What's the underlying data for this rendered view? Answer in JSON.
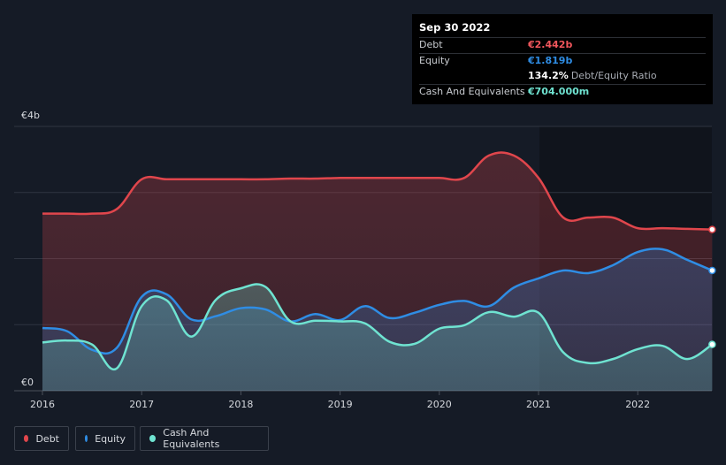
{
  "colors": {
    "debt": "#e0464c",
    "equity": "#2f8de4",
    "cash": "#6fe3d1",
    "background": "#151b26"
  },
  "tooltip": {
    "date": "Sep 30 2022",
    "rows": [
      {
        "label": "Debt",
        "value": "€2.442b",
        "color": "#f0565c"
      },
      {
        "label": "Equity",
        "value": "€1.819b",
        "color": "#2f8de4"
      },
      {
        "label": "",
        "value": "134.2%",
        "color": "#ffffff",
        "suffix": "Debt/Equity Ratio"
      },
      {
        "label": "Cash And Equivalents",
        "value": "€704.000m",
        "color": "#6fe3d1"
      }
    ]
  },
  "legend": [
    {
      "name": "Debt",
      "color": "#e0464c"
    },
    {
      "name": "Equity",
      "color": "#2f8de4"
    },
    {
      "name": "Cash And Equivalents",
      "color": "#6fe3d1"
    }
  ],
  "chart_data": {
    "type": "area",
    "title": "",
    "xlabel": "",
    "ylabel": "",
    "ylim": [
      0,
      4
    ],
    "xlim": [
      2015.75,
      2022.75
    ],
    "y_ticks": [
      {
        "value": 0,
        "label": "€0"
      },
      {
        "value": 4,
        "label": "€4b"
      }
    ],
    "x_ticks": [
      {
        "value": 2016,
        "label": "2016"
      },
      {
        "value": 2017,
        "label": "2017"
      },
      {
        "value": 2018,
        "label": "2018"
      },
      {
        "value": 2019,
        "label": "2019"
      },
      {
        "value": 2020,
        "label": "2020"
      },
      {
        "value": 2021,
        "label": "2021"
      },
      {
        "value": 2022,
        "label": "2022"
      }
    ],
    "grid": true,
    "legend_position": "bottom-left",
    "series": [
      {
        "name": "Debt",
        "x": [
          2016.0,
          2016.25,
          2016.5,
          2016.75,
          2017.0,
          2017.25,
          2017.5,
          2017.75,
          2018.0,
          2018.25,
          2018.5,
          2018.75,
          2019.0,
          2019.25,
          2019.5,
          2019.75,
          2020.0,
          2020.25,
          2020.5,
          2020.75,
          2021.0,
          2021.25,
          2021.5,
          2021.75,
          2022.0,
          2022.25,
          2022.5,
          2022.75
        ],
        "values": [
          2.68,
          2.68,
          2.68,
          2.75,
          3.2,
          3.2,
          3.2,
          3.2,
          3.2,
          3.2,
          3.21,
          3.21,
          3.22,
          3.22,
          3.22,
          3.22,
          3.22,
          3.22,
          3.56,
          3.56,
          3.22,
          2.62,
          2.62,
          2.62,
          2.46,
          2.46,
          2.45,
          2.44
        ]
      },
      {
        "name": "Equity",
        "x": [
          2016.0,
          2016.25,
          2016.5,
          2016.75,
          2017.0,
          2017.25,
          2017.5,
          2017.75,
          2018.0,
          2018.25,
          2018.5,
          2018.75,
          2019.0,
          2019.25,
          2019.5,
          2019.75,
          2020.0,
          2020.25,
          2020.5,
          2020.75,
          2021.0,
          2021.25,
          2021.5,
          2021.75,
          2022.0,
          2022.25,
          2022.5,
          2022.75
        ],
        "values": [
          0.95,
          0.9,
          0.62,
          0.65,
          1.42,
          1.46,
          1.08,
          1.13,
          1.25,
          1.23,
          1.05,
          1.16,
          1.07,
          1.28,
          1.1,
          1.18,
          1.3,
          1.36,
          1.28,
          1.56,
          1.7,
          1.82,
          1.78,
          1.9,
          2.1,
          2.14,
          1.98,
          1.82
        ]
      },
      {
        "name": "Cash And Equivalents",
        "x": [
          2016.0,
          2016.25,
          2016.5,
          2016.75,
          2017.0,
          2017.25,
          2017.5,
          2017.75,
          2018.0,
          2018.25,
          2018.5,
          2018.75,
          2019.0,
          2019.25,
          2019.5,
          2019.75,
          2020.0,
          2020.25,
          2020.5,
          2020.75,
          2021.0,
          2021.25,
          2021.5,
          2021.75,
          2022.0,
          2022.25,
          2022.5,
          2022.75
        ],
        "values": [
          0.73,
          0.76,
          0.7,
          0.34,
          1.28,
          1.37,
          0.82,
          1.38,
          1.55,
          1.57,
          1.05,
          1.06,
          1.05,
          1.02,
          0.74,
          0.71,
          0.94,
          0.99,
          1.19,
          1.12,
          1.18,
          0.58,
          0.42,
          0.48,
          0.63,
          0.68,
          0.48,
          0.7
        ]
      }
    ]
  }
}
